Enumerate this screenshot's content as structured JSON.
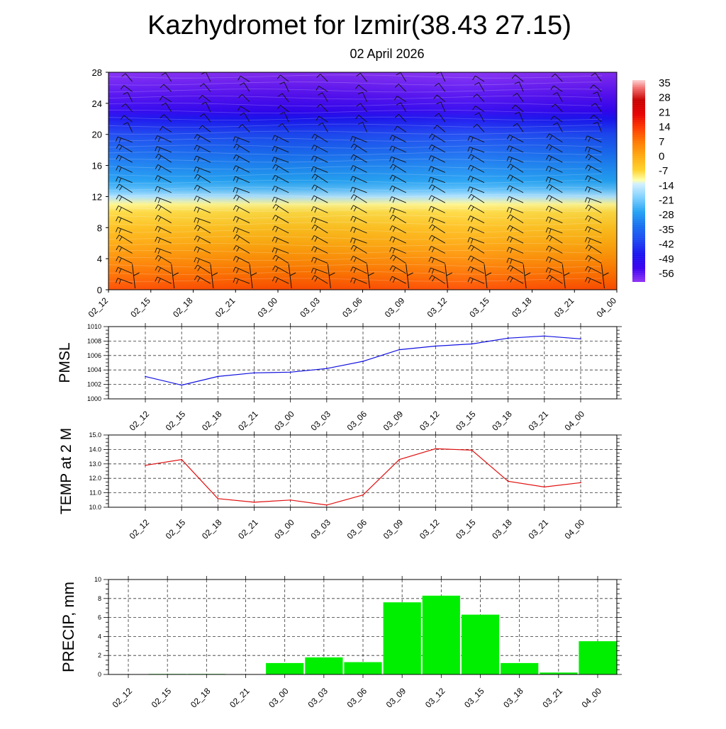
{
  "title": "Kazhydromet for Izmir(38.43 27.15)",
  "subtitle": "02 April 2026",
  "colors": {
    "pmsl_line": "#1010e0",
    "temp_line": "#e01010",
    "precip_bar": "#00ee00",
    "grid": "#333333",
    "axis": "#000000"
  },
  "chart_data": [
    {
      "id": "cross_section",
      "type": "heatmap",
      "title": "",
      "x_tick_labels": [
        "02_12",
        "02_15",
        "02_18",
        "02_21",
        "03_00",
        "03_03",
        "03_06",
        "03_09",
        "03_12",
        "03_15",
        "03_18",
        "03_21",
        "04_00"
      ],
      "y_tick_labels": [
        "0",
        "4",
        "8",
        "12",
        "16",
        "20",
        "24",
        "28"
      ],
      "ylim": [
        0,
        28
      ],
      "colorbar": {
        "labels": [
          "35",
          "28",
          "21",
          "14",
          "7",
          "0",
          "-7",
          "-14",
          "-21",
          "-28",
          "-35",
          "-42",
          "-49",
          "-56"
        ],
        "range": [
          -63,
          38
        ],
        "stops": [
          {
            "v": 38,
            "c": "#fcd4d4"
          },
          {
            "v": 34,
            "c": "#f26e6e"
          },
          {
            "v": 28,
            "c": "#c80000"
          },
          {
            "v": 21,
            "c": "#e60000"
          },
          {
            "v": 14,
            "c": "#ff3a00"
          },
          {
            "v": 7,
            "c": "#ff7a00"
          },
          {
            "v": 0,
            "c": "#ffaa10"
          },
          {
            "v": -7,
            "c": "#ffd22a"
          },
          {
            "v": -12,
            "c": "#ffffa8"
          },
          {
            "v": -14,
            "c": "#d2f0ff"
          },
          {
            "v": -21,
            "c": "#7ccfff"
          },
          {
            "v": -28,
            "c": "#24a2f4"
          },
          {
            "v": -35,
            "c": "#1870f0"
          },
          {
            "v": -42,
            "c": "#1c48f2"
          },
          {
            "v": -49,
            "c": "#1a14f0"
          },
          {
            "v": -56,
            "c": "#3a00f0"
          },
          {
            "v": -63,
            "c": "#9035f5"
          }
        ]
      },
      "temperature_profile": [
        {
          "level": 0,
          "t": 12
        },
        {
          "level": 2,
          "t": 8
        },
        {
          "level": 4,
          "t": 4
        },
        {
          "level": 6,
          "t": 0
        },
        {
          "level": 8,
          "t": -4
        },
        {
          "level": 10,
          "t": -8
        },
        {
          "level": 11,
          "t": -11
        },
        {
          "level": 12,
          "t": -17
        },
        {
          "level": 13,
          "t": -24
        },
        {
          "level": 14,
          "t": -28
        },
        {
          "level": 16,
          "t": -32
        },
        {
          "level": 18,
          "t": -37
        },
        {
          "level": 20,
          "t": -42
        },
        {
          "level": 22,
          "t": -49
        },
        {
          "level": 23,
          "t": -54
        },
        {
          "level": 25,
          "t": -58
        },
        {
          "level": 26.5,
          "t": -60
        },
        {
          "level": 28,
          "t": -62
        }
      ]
    },
    {
      "id": "pmsl",
      "type": "line",
      "ylabel": "PMSL",
      "categories": [
        "02_12",
        "02_15",
        "02_18",
        "02_21",
        "03_00",
        "03_03",
        "03_06",
        "03_09",
        "03_12",
        "03_15",
        "03_18",
        "03_21",
        "04_00"
      ],
      "values": [
        1003.1,
        1001.9,
        1003.1,
        1003.6,
        1003.7,
        1004.2,
        1005.2,
        1006.8,
        1007.3,
        1007.6,
        1008.4,
        1008.7,
        1008.3
      ],
      "ylim": [
        1000,
        1010
      ],
      "y_tick_labels": [
        "1000",
        "1002",
        "1004",
        "1006",
        "1008",
        "1010"
      ]
    },
    {
      "id": "temp2m",
      "type": "line",
      "ylabel": "TEMP at 2 M",
      "categories": [
        "02_12",
        "02_15",
        "02_18",
        "02_21",
        "03_00",
        "03_03",
        "03_06",
        "03_09",
        "03_12",
        "03_15",
        "03_18",
        "03_21",
        "04_00"
      ],
      "values": [
        12.9,
        13.3,
        10.6,
        10.35,
        10.5,
        10.15,
        10.85,
        13.3,
        14.05,
        13.95,
        11.8,
        11.4,
        11.7
      ],
      "ylim": [
        10,
        15
      ],
      "y_tick_labels": [
        "10.0",
        "11.0",
        "12.0",
        "13.0",
        "14.0",
        "15.0"
      ]
    },
    {
      "id": "precip",
      "type": "bar",
      "ylabel": "PRECIP, mm",
      "categories": [
        "02_12",
        "02_15",
        "02_18",
        "02_21",
        "03_00",
        "03_03",
        "03_06",
        "03_09",
        "03_12",
        "03_15",
        "03_18",
        "03_21",
        "04_00"
      ],
      "values": [
        0.0,
        0.05,
        0.05,
        0.0,
        1.2,
        1.8,
        1.3,
        7.6,
        8.3,
        6.3,
        1.2,
        0.2,
        3.5
      ],
      "ylim": [
        0,
        10
      ],
      "y_tick_labels": [
        "0",
        "2",
        "4",
        "6",
        "8",
        "10"
      ]
    }
  ]
}
